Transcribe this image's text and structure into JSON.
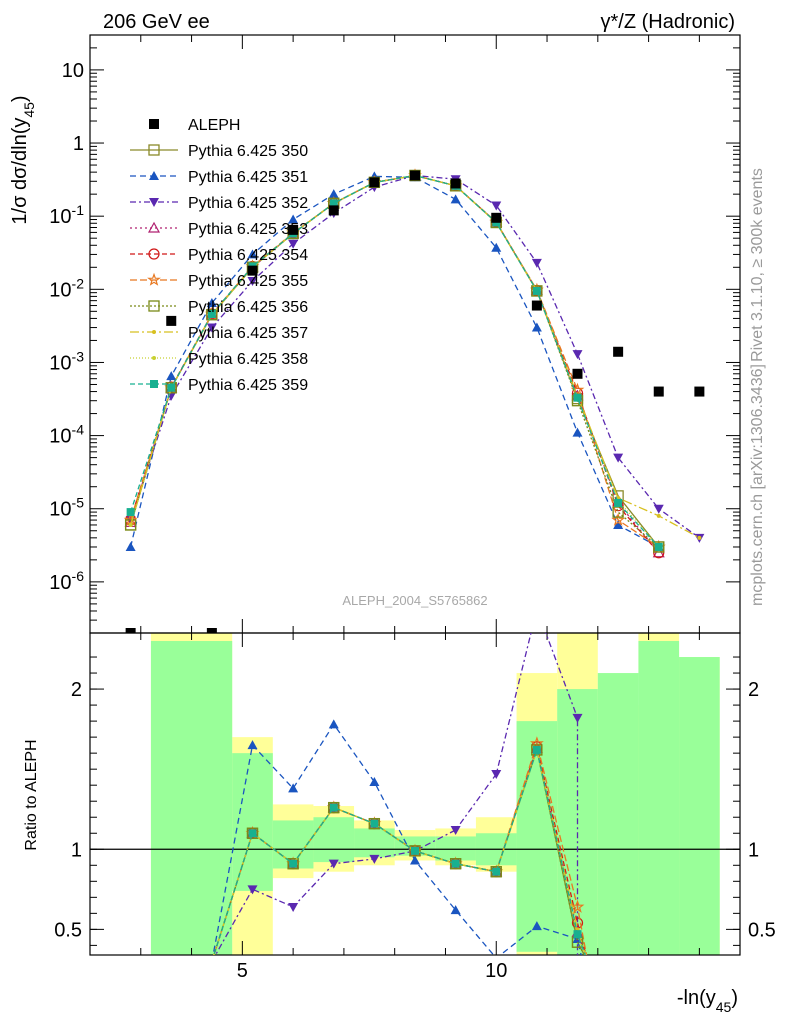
{
  "header": {
    "left_title": "206 GeV ee",
    "right_title": "γ*/Z (Hadronic)"
  },
  "side_labels": {
    "rivet": "Rivet 3.1.10, ≥ 300k events",
    "mcplots": "mcplots.cern.ch [arXiv:1306.3436]"
  },
  "watermark": "ALEPH_2004_S5765862",
  "chart_data": [
    {
      "type": "line",
      "panel": "main",
      "ylabel": "1/σ dσ/dln(y45)",
      "yscale": "log",
      "ylim": [
        2e-07,
        30
      ],
      "xlim": [
        2.0,
        14.8
      ],
      "yticks": [
        {
          "value": 1e-06,
          "label": "10^-6"
        },
        {
          "value": 1e-05,
          "label": "10^-5"
        },
        {
          "value": 0.0001,
          "label": "10^-4"
        },
        {
          "value": 0.001,
          "label": "10^-3"
        },
        {
          "value": 0.01,
          "label": "10^-2"
        },
        {
          "value": 0.1,
          "label": "10^-1"
        },
        {
          "value": 1,
          "label": "1"
        },
        {
          "value": 10,
          "label": "10"
        }
      ],
      "legend_position": "top-left",
      "data": {
        "name": "ALEPH",
        "x": [
          2.8,
          3.6,
          4.4,
          5.2,
          6.0,
          6.8,
          7.6,
          8.4,
          9.2,
          10.0,
          10.8,
          11.6,
          12.4,
          13.2,
          14.0
        ],
        "y": [
          2e-07,
          0.0037,
          2e-07,
          0.018,
          0.065,
          0.12,
          0.29,
          0.36,
          0.28,
          0.095,
          0.006,
          0.0007,
          0.0014,
          0.0004,
          0.0004
        ]
      },
      "series": [
        {
          "name": "Pythia 6.425 350",
          "color": "#8a8a2a",
          "marker": "square-open",
          "dash": "solid",
          "x": [
            2.8,
            3.6,
            4.4,
            5.2,
            6.0,
            6.8,
            7.6,
            8.4,
            9.2,
            10.0,
            10.8,
            11.6,
            12.4,
            13.2
          ],
          "y": [
            6e-06,
            0.00045,
            0.0045,
            0.02,
            0.058,
            0.15,
            0.29,
            0.36,
            0.26,
            0.082,
            0.0095,
            0.00032,
            1.5e-05,
            3e-06
          ]
        },
        {
          "name": "Pythia 6.425 351",
          "color": "#1a55c0",
          "marker": "triangle-up",
          "dash": "6,4",
          "x": [
            2.8,
            3.6,
            4.4,
            5.2,
            6.0,
            6.8,
            7.6,
            8.4,
            9.2,
            10.0,
            10.8,
            11.6,
            12.4,
            13.2
          ],
          "y": [
            3e-06,
            0.00065,
            0.0065,
            0.03,
            0.09,
            0.2,
            0.35,
            0.34,
            0.17,
            0.037,
            0.003,
            0.00011,
            6e-06,
            3e-06
          ]
        },
        {
          "name": "Pythia 6.425 352",
          "color": "#5a28b0",
          "marker": "triangle-down",
          "dash": "6,3,2,3",
          "x": [
            2.8,
            3.6,
            4.4,
            5.2,
            6.0,
            6.8,
            7.6,
            8.4,
            9.2,
            10.0,
            10.8,
            11.6,
            12.4,
            13.2,
            14.0
          ],
          "y": [
            7e-06,
            0.00035,
            0.003,
            0.013,
            0.042,
            0.11,
            0.25,
            0.36,
            0.32,
            0.14,
            0.023,
            0.0013,
            5e-05,
            1e-05,
            4e-06
          ]
        },
        {
          "name": "Pythia 6.425 353",
          "color": "#b02070",
          "marker": "triangle-open",
          "dash": "2,3",
          "x": [
            2.8,
            3.6,
            4.4,
            5.2,
            6.0,
            6.8,
            7.6,
            8.4,
            9.2,
            10.0,
            10.8,
            11.6,
            12.4,
            13.2
          ],
          "y": [
            6.5e-06,
            0.00045,
            0.0045,
            0.02,
            0.058,
            0.15,
            0.29,
            0.36,
            0.26,
            0.083,
            0.0097,
            0.00035,
            1.2e-05,
            2.5e-06
          ]
        },
        {
          "name": "Pythia 6.425 354",
          "color": "#d01818",
          "marker": "circle-open",
          "dash": "5,3",
          "x": [
            2.8,
            3.6,
            4.4,
            5.2,
            6.0,
            6.8,
            7.6,
            8.4,
            9.2,
            10.0,
            10.8,
            11.6,
            12.4,
            13.2
          ],
          "y": [
            7e-06,
            0.00046,
            0.0046,
            0.0205,
            0.058,
            0.15,
            0.29,
            0.36,
            0.26,
            0.083,
            0.0096,
            0.00038,
            1.1e-05,
            2.5e-06
          ]
        },
        {
          "name": "Pythia 6.425 355",
          "color": "#e87820",
          "marker": "star-open",
          "dash": "7,3",
          "x": [
            2.8,
            3.6,
            4.4,
            5.2,
            6.0,
            6.8,
            7.6,
            8.4,
            9.2,
            10.0,
            10.8,
            11.6,
            12.4,
            13.2
          ],
          "y": [
            7e-06,
            0.00045,
            0.0046,
            0.0205,
            0.059,
            0.15,
            0.29,
            0.36,
            0.26,
            0.083,
            0.0098,
            0.00042,
            7e-06,
            3e-06
          ]
        },
        {
          "name": "Pythia 6.425 356",
          "color": "#7a8a18",
          "marker": "square-open",
          "dash": "2,2",
          "x": [
            2.8,
            3.6,
            4.4,
            5.2,
            6.0,
            6.8,
            7.6,
            8.4,
            9.2,
            10.0,
            10.8,
            11.6,
            12.4,
            13.2
          ],
          "y": [
            6e-06,
            0.00045,
            0.0045,
            0.02,
            0.058,
            0.15,
            0.29,
            0.36,
            0.26,
            0.082,
            0.0095,
            0.0003,
            9e-06,
            3e-06
          ]
        },
        {
          "name": "Pythia 6.425 357",
          "color": "#d8c020",
          "marker": "dot",
          "dash": "9,3,2,3",
          "x": [
            2.8,
            3.6,
            4.4,
            5.2,
            6.0,
            6.8,
            7.6,
            8.4,
            9.2,
            10.0,
            10.8,
            11.6,
            12.4,
            13.2,
            14.0
          ],
          "y": [
            6e-06,
            0.00045,
            0.0045,
            0.02,
            0.058,
            0.15,
            0.29,
            0.36,
            0.26,
            0.082,
            0.0095,
            0.00035,
            1.4e-05,
            8e-06,
            4e-06
          ]
        },
        {
          "name": "Pythia 6.425 358",
          "color": "#c8d030",
          "marker": "dot",
          "dash": "1,2",
          "x": [
            2.8,
            3.6,
            4.4,
            5.2,
            6.0,
            6.8,
            7.6,
            8.4,
            9.2,
            10.0,
            10.8,
            11.6,
            12.4,
            13.2
          ],
          "y": [
            6e-06,
            0.00045,
            0.0045,
            0.02,
            0.058,
            0.15,
            0.29,
            0.36,
            0.26,
            0.082,
            0.0095,
            0.00033,
            1.3e-05,
            3e-06
          ]
        },
        {
          "name": "Pythia 6.425 359",
          "color": "#18b090",
          "marker": "square",
          "dash": "5,3",
          "x": [
            2.8,
            3.6,
            4.4,
            5.2,
            6.0,
            6.8,
            7.6,
            8.4,
            9.2,
            10.0,
            10.8,
            11.6,
            12.4,
            13.2
          ],
          "y": [
            9e-06,
            0.00045,
            0.0046,
            0.0205,
            0.058,
            0.15,
            0.29,
            0.36,
            0.26,
            0.082,
            0.0095,
            0.00033,
            1.2e-05,
            3e-06
          ]
        }
      ]
    },
    {
      "type": "line",
      "panel": "ratio",
      "ylabel": "Ratio to ALEPH",
      "xlabel": "-ln(y45)",
      "ylim": [
        0.34,
        2.35
      ],
      "xlim": [
        2.0,
        14.8
      ],
      "yticks": [
        0.5,
        1,
        2
      ],
      "xticks": [
        5,
        10
      ],
      "reference_line": 1,
      "bands": [
        {
          "x0": 3.2,
          "x1": 4.8,
          "y0": 0.34,
          "y1": 2.35
        },
        {
          "x0": 4.8,
          "x1": 5.6,
          "y0": 0.34,
          "y1": 1.7
        },
        {
          "x0": 5.6,
          "x1": 6.4,
          "y0": 0.82,
          "y1": 1.28
        },
        {
          "x0": 6.4,
          "x1": 7.2,
          "y0": 0.86,
          "y1": 1.27
        },
        {
          "x0": 7.2,
          "x1": 8.0,
          "y0": 0.9,
          "y1": 1.18
        },
        {
          "x0": 8.0,
          "x1": 8.8,
          "y0": 0.93,
          "y1": 1.12
        },
        {
          "x0": 8.8,
          "x1": 9.6,
          "y0": 0.9,
          "y1": 1.13
        },
        {
          "x0": 9.6,
          "x1": 10.4,
          "y0": 0.86,
          "y1": 1.2
        },
        {
          "x0": 10.4,
          "x1": 11.2,
          "y0": 0.34,
          "y1": 2.1
        },
        {
          "x0": 11.2,
          "x1": 12.0,
          "y0": 0.34,
          "y1": 2.35
        },
        {
          "x0": 12.0,
          "x1": 12.8,
          "y0": 0.34,
          "y1": 1.9
        },
        {
          "x0": 12.8,
          "x1": 13.6,
          "y0": 0.34,
          "y1": 2.35
        },
        {
          "x0": 13.6,
          "x1": 14.4,
          "y0": 0.34,
          "y1": 2.2
        }
      ],
      "inner_bands": [
        {
          "x0": 3.2,
          "x1": 4.8,
          "y0": 0.34,
          "y1": 2.3
        },
        {
          "x0": 4.8,
          "x1": 5.6,
          "y0": 0.74,
          "y1": 1.6
        },
        {
          "x0": 5.6,
          "x1": 6.4,
          "y0": 0.88,
          "y1": 1.18
        },
        {
          "x0": 6.4,
          "x1": 7.2,
          "y0": 0.92,
          "y1": 1.2
        },
        {
          "x0": 7.2,
          "x1": 8.0,
          "y0": 0.95,
          "y1": 1.13
        },
        {
          "x0": 8.0,
          "x1": 8.8,
          "y0": 0.96,
          "y1": 1.08
        },
        {
          "x0": 8.8,
          "x1": 9.6,
          "y0": 0.93,
          "y1": 1.08
        },
        {
          "x0": 9.6,
          "x1": 10.4,
          "y0": 0.9,
          "y1": 1.1
        },
        {
          "x0": 10.4,
          "x1": 11.2,
          "y0": 0.36,
          "y1": 1.8
        },
        {
          "x0": 11.2,
          "x1": 12.0,
          "y0": 0.34,
          "y1": 2.0
        },
        {
          "x0": 12.0,
          "x1": 12.8,
          "y0": 0.34,
          "y1": 2.1
        },
        {
          "x0": 12.8,
          "x1": 13.6,
          "y0": 0.34,
          "y1": 2.3
        },
        {
          "x0": 13.6,
          "x1": 14.4,
          "y0": 0.34,
          "y1": 2.2
        }
      ],
      "series": [
        {
          "name": "Pythia 6.425 350",
          "x": [
            4.4,
            5.2,
            6.0,
            6.8,
            7.6,
            8.4,
            9.2,
            10.0,
            10.8,
            11.6,
            11.8
          ],
          "y": [
            0.3,
            1.1,
            0.91,
            1.26,
            1.16,
            0.99,
            0.91,
            0.86,
            1.62,
            0.42,
            0.3
          ]
        },
        {
          "name": "Pythia 6.425 351",
          "x": [
            4.4,
            5.2,
            6.0,
            6.8,
            7.6,
            8.4,
            9.2,
            10.0,
            10.8,
            11.6,
            11.7
          ],
          "y": [
            0.3,
            1.65,
            1.38,
            1.78,
            1.42,
            0.93,
            0.62,
            0.32,
            0.52,
            0.44,
            0.3
          ]
        },
        {
          "name": "Pythia 6.425 352",
          "x": [
            4.4,
            5.2,
            6.0,
            6.8,
            7.6,
            8.4,
            9.2,
            10.0,
            10.8,
            11.6,
            11.6
          ],
          "y": [
            0.3,
            0.75,
            0.64,
            0.91,
            0.94,
            0.99,
            1.12,
            1.47,
            2.5,
            1.82,
            0.3
          ]
        },
        {
          "name": "Pythia 6.425 353",
          "x": [
            4.4,
            5.2,
            6.0,
            6.8,
            7.6,
            8.4,
            9.2,
            10.0,
            10.8,
            11.6,
            11.8
          ],
          "y": [
            0.3,
            1.1,
            0.91,
            1.26,
            1.16,
            0.99,
            0.91,
            0.86,
            1.63,
            0.48,
            0.3
          ]
        },
        {
          "name": "Pythia 6.425 354",
          "x": [
            4.4,
            5.2,
            6.0,
            6.8,
            7.6,
            8.4,
            9.2,
            10.0,
            10.8,
            11.6,
            11.8
          ],
          "y": [
            0.3,
            1.1,
            0.91,
            1.26,
            1.16,
            0.99,
            0.91,
            0.86,
            1.64,
            0.54,
            0.3
          ]
        },
        {
          "name": "Pythia 6.425 355",
          "x": [
            4.4,
            5.2,
            6.0,
            6.8,
            7.6,
            8.4,
            9.2,
            10.0,
            10.8,
            11.6,
            11.8
          ],
          "y": [
            0.3,
            1.1,
            0.91,
            1.26,
            1.16,
            0.99,
            0.91,
            0.86,
            1.66,
            0.64,
            0.3
          ]
        },
        {
          "name": "Pythia 6.425 356",
          "x": [
            4.4,
            5.2,
            6.0,
            6.8,
            7.6,
            8.4,
            9.2,
            10.0,
            10.8,
            11.6,
            11.8
          ],
          "y": [
            0.3,
            1.1,
            0.91,
            1.26,
            1.16,
            0.99,
            0.91,
            0.86,
            1.62,
            0.42,
            0.3
          ]
        },
        {
          "name": "Pythia 6.425 357",
          "x": [
            4.4,
            5.2,
            6.0,
            6.8,
            7.6,
            8.4,
            9.2,
            10.0,
            10.8,
            11.6,
            11.8
          ],
          "y": [
            0.3,
            1.1,
            0.91,
            1.26,
            1.16,
            0.99,
            0.91,
            0.86,
            1.62,
            0.5,
            0.3
          ]
        },
        {
          "name": "Pythia 6.425 358",
          "x": [
            4.4,
            5.2,
            6.0,
            6.8,
            7.6,
            8.4,
            9.2,
            10.0,
            10.8,
            11.6,
            11.8
          ],
          "y": [
            0.3,
            1.1,
            0.91,
            1.26,
            1.16,
            0.99,
            0.91,
            0.86,
            1.62,
            0.46,
            0.3
          ]
        },
        {
          "name": "Pythia 6.425 359",
          "x": [
            4.4,
            5.2,
            6.0,
            6.8,
            7.6,
            8.4,
            9.2,
            10.0,
            10.8,
            11.6,
            11.8
          ],
          "y": [
            0.3,
            1.1,
            0.91,
            1.26,
            1.16,
            0.99,
            0.91,
            0.86,
            1.62,
            0.47,
            0.3
          ]
        }
      ]
    }
  ],
  "colors": {
    "band_yellow": "#ffff99",
    "band_green": "#99ff99"
  }
}
